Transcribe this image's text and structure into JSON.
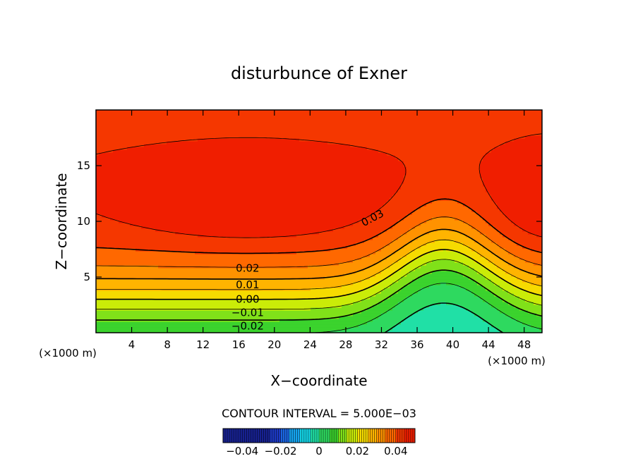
{
  "chart_data": {
    "type": "heatmap",
    "title": "disturbunce of Exner",
    "xlabel": "X−coordinate",
    "ylabel": "Z−coordinate",
    "x_unit_left": "(×1000 m)",
    "x_unit_right": "(×1000 m)",
    "xlim": [
      0,
      50
    ],
    "ylim": [
      0,
      20
    ],
    "x_ticks": [
      4,
      8,
      12,
      16,
      20,
      24,
      28,
      32,
      36,
      40,
      44,
      48
    ],
    "x_tick_labels": [
      "4",
      "8",
      "12",
      "16",
      "20",
      "24",
      "28",
      "32",
      "36",
      "40",
      "44",
      "48"
    ],
    "y_ticks": [
      5,
      10,
      15
    ],
    "y_tick_labels": [
      "5",
      "10",
      "15"
    ],
    "contour_interval_text": "CONTOUR INTERVAL = 5.000E−03",
    "contour_interval": 0.005,
    "contour_labels": [
      {
        "text": "0.03",
        "x": 31.0,
        "z": 10.3
      },
      {
        "text": "0.02",
        "x": 17.0,
        "z": 5.8
      },
      {
        "text": "0.01",
        "x": 17.0,
        "z": 4.3
      },
      {
        "text": "0.00",
        "x": 17.0,
        "z": 3.0
      },
      {
        "text": "−0.01",
        "x": 17.0,
        "z": 1.8
      },
      {
        "text": "−0.02",
        "x": 17.0,
        "z": 0.6
      }
    ],
    "field": {
      "description_values": "approximate Exner perturbation levels",
      "max_value": 0.045,
      "min_value": -0.03,
      "high_centers": [
        {
          "x": 20,
          "z": 12.5,
          "value": 0.045
        },
        {
          "x": 50,
          "z": 12.5,
          "value": 0.042
        }
      ],
      "saddle": {
        "x": 39,
        "z": 12,
        "value": 0.03
      },
      "low_center": {
        "x": 39,
        "z": 0,
        "value": -0.03
      }
    },
    "colorbar": {
      "range": [
        -0.05,
        0.05
      ],
      "tick_labels": [
        "−0.04",
        "−0.02",
        "0",
        "0.02",
        "0.04"
      ],
      "tick_values": [
        -0.04,
        -0.02,
        0,
        0.02,
        0.04
      ]
    },
    "colors": {
      "min": "#1f1fa0",
      "low": "#2aa7e8",
      "cyan": "#19e6e6",
      "green": "#2ed12e",
      "yellow": "#f0f000",
      "orange": "#ffa000",
      "high": "#f01e00"
    }
  }
}
